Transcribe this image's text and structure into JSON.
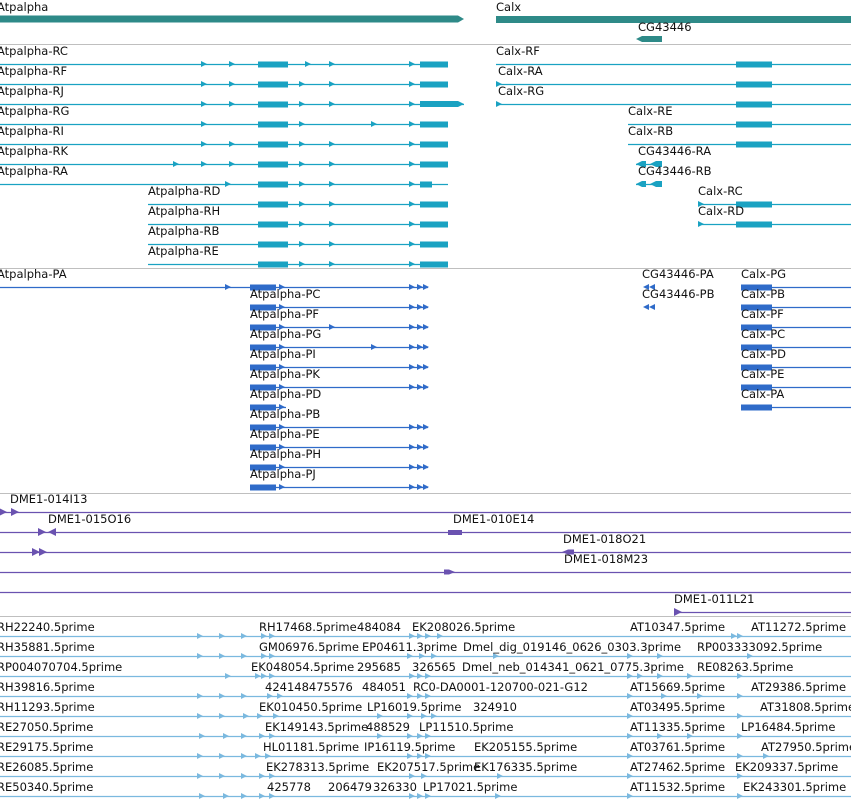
{
  "tracks": {
    "gene_track": {
      "features": [
        {
          "name": "Atpalpha"
        },
        {
          "name": "Calx"
        },
        {
          "name": "CG43446"
        }
      ]
    },
    "transcript_track": {
      "features": [
        {
          "name": "Atpalpha-RC"
        },
        {
          "name": "Atpalpha-RF"
        },
        {
          "name": "Atpalpha-RJ"
        },
        {
          "name": "Atpalpha-RG"
        },
        {
          "name": "Atpalpha-RI"
        },
        {
          "name": "Atpalpha-RK"
        },
        {
          "name": "Atpalpha-RA"
        },
        {
          "name": "Atpalpha-RD"
        },
        {
          "name": "Atpalpha-RH"
        },
        {
          "name": "Atpalpha-RB"
        },
        {
          "name": "Atpalpha-RE"
        },
        {
          "name": "Calx-RF"
        },
        {
          "name": "Calx-RA"
        },
        {
          "name": "Calx-RG"
        },
        {
          "name": "Calx-RE"
        },
        {
          "name": "Calx-RB"
        },
        {
          "name": "CG43446-RA"
        },
        {
          "name": "CG43446-RB"
        },
        {
          "name": "Calx-RC"
        },
        {
          "name": "Calx-RD"
        }
      ]
    },
    "protein_track": {
      "features": [
        {
          "name": "Atpalpha-PA"
        },
        {
          "name": "Atpalpha-PC"
        },
        {
          "name": "Atpalpha-PF"
        },
        {
          "name": "Atpalpha-PG"
        },
        {
          "name": "Atpalpha-PI"
        },
        {
          "name": "Atpalpha-PK"
        },
        {
          "name": "Atpalpha-PD"
        },
        {
          "name": "Atpalpha-PB"
        },
        {
          "name": "Atpalpha-PE"
        },
        {
          "name": "Atpalpha-PH"
        },
        {
          "name": "Atpalpha-PJ"
        },
        {
          "name": "CG43446-PA"
        },
        {
          "name": "CG43446-PB"
        },
        {
          "name": "Calx-PG"
        },
        {
          "name": "Calx-PB"
        },
        {
          "name": "Calx-PF"
        },
        {
          "name": "Calx-PC"
        },
        {
          "name": "Calx-PD"
        },
        {
          "name": "Calx-PE"
        },
        {
          "name": "Calx-PA"
        }
      ]
    },
    "bac_track": {
      "features": [
        {
          "name": "DME1-014I13"
        },
        {
          "name": "DME1-015O16"
        },
        {
          "name": "DME1-010E14"
        },
        {
          "name": "DME1-018O21"
        },
        {
          "name": "DME1-018M23"
        },
        {
          "name": "DME1-011L21"
        }
      ]
    },
    "est_track": {
      "features": [
        {
          "name": "RH22240.5prime"
        },
        {
          "name": "RH17468.5prime"
        },
        {
          "name": "484084"
        },
        {
          "name": "EK208026.5prime"
        },
        {
          "name": "AT10347.5prime"
        },
        {
          "name": "AT11272.5prime"
        },
        {
          "name": "RH35881.5prime"
        },
        {
          "name": "GM06976.5prime"
        },
        {
          "name": "EP04611.3prime"
        },
        {
          "name": "Dmel_dig_019146_0626_0303.3prime"
        },
        {
          "name": "RP003333092.5prime"
        },
        {
          "name": "RP004070704.5prime"
        },
        {
          "name": "EK048054.5prime"
        },
        {
          "name": "295685"
        },
        {
          "name": "326565"
        },
        {
          "name": "Dmel_neb_014341_0621_0775.3prime"
        },
        {
          "name": "RE08263.5prime"
        },
        {
          "name": "RH39816.5prime"
        },
        {
          "name": "424148475576"
        },
        {
          "name": "484051"
        },
        {
          "name": "RC0-DA0001-120700-021-G12"
        },
        {
          "name": "AT15669.5prime"
        },
        {
          "name": "AT29386.5prime"
        },
        {
          "name": "RH11293.5prime"
        },
        {
          "name": "EK010450.5prime"
        },
        {
          "name": "LP16019.5prime"
        },
        {
          "name": "324910"
        },
        {
          "name": "AT03495.5prime"
        },
        {
          "name": "AT31808.5prime"
        },
        {
          "name": "RE27050.5prime"
        },
        {
          "name": "EK149143.5prime"
        },
        {
          "name": "488529"
        },
        {
          "name": "LP11510.5prime"
        },
        {
          "name": "AT11335.5prime"
        },
        {
          "name": "LP16484.5prime"
        },
        {
          "name": "RE29175.5prime"
        },
        {
          "name": "HL01181.5prime"
        },
        {
          "name": "IP16119.5prime"
        },
        {
          "name": "EK205155.5prime"
        },
        {
          "name": "AT03761.5prime"
        },
        {
          "name": "AT27950.5prime"
        },
        {
          "name": "RE26085.5prime"
        },
        {
          "name": "EK278313.5prime"
        },
        {
          "name": "EK207517.5prime"
        },
        {
          "name": "EK176335.5prime"
        },
        {
          "name": "AT27462.5prime"
        },
        {
          "name": "EK209337.5prime"
        },
        {
          "name": "RE50340.5prime"
        },
        {
          "name": "425778"
        },
        {
          "name": "206479"
        },
        {
          "name": "326330"
        },
        {
          "name": "LP17021.5prime"
        },
        {
          "name": "AT11532.5prime"
        },
        {
          "name": "EK243301.5prime"
        }
      ]
    }
  },
  "colors": {
    "gene": "#2e8a88",
    "transcript": "#1aa2c2",
    "protein": "#2f6bc9",
    "bac": "#6a52b0",
    "est": "#7bb9df",
    "separator": "#bfbfbf"
  }
}
